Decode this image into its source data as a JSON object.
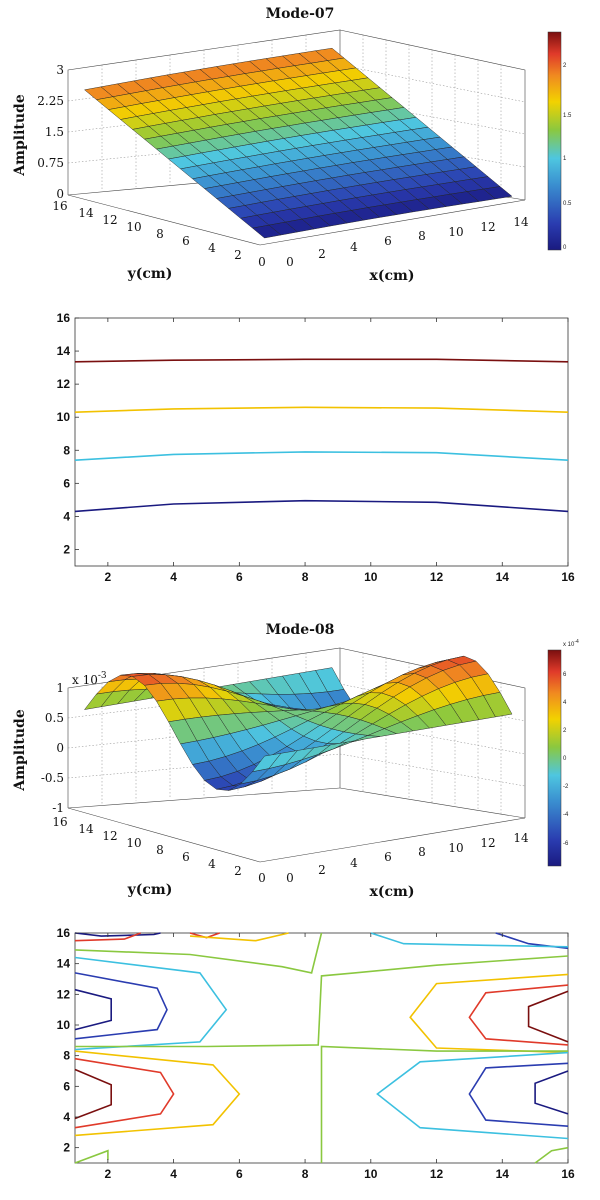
{
  "chart_data": [
    {
      "type": "surface3d",
      "title": "Mode-07",
      "xlabel": "x(cm)",
      "ylabel": "y(cm)",
      "zlabel": "Amplitude",
      "z_ticks": [
        "0",
        "0.75",
        "1.5",
        "2.25",
        "3"
      ],
      "zlim": [
        0,
        3
      ],
      "x_ticks": [
        "0",
        "2",
        "4",
        "6",
        "8",
        "10",
        "12",
        "14"
      ],
      "y_ticks": [
        "0",
        "2",
        "4",
        "6",
        "8",
        "10",
        "12",
        "14",
        "16"
      ],
      "xlim": [
        0,
        16
      ],
      "ylim": [
        0,
        16
      ],
      "colorbar_ticks": [
        "2",
        "1.5",
        "1",
        "0.5",
        "0"
      ],
      "colorbar_range": [
        0,
        2.5
      ],
      "surface_summary": "planar slope rising from ~0 at y=1 to ~2.5 at y=16, nearly constant along x"
    },
    {
      "type": "contour",
      "x_ticks": [
        "2",
        "4",
        "6",
        "8",
        "10",
        "12",
        "14",
        "16"
      ],
      "y_ticks": [
        "2",
        "4",
        "6",
        "8",
        "10",
        "12",
        "14",
        "16"
      ],
      "xlim": [
        1,
        16
      ],
      "ylim": [
        1,
        16
      ],
      "levels": [
        {
          "color": "#1a1a80",
          "points": [
            [
              1,
              4.3
            ],
            [
              4,
              4.75
            ],
            [
              8,
              4.95
            ],
            [
              12,
              4.85
            ],
            [
              16,
              4.3
            ]
          ]
        },
        {
          "color": "#3cc0e0",
          "points": [
            [
              1,
              7.4
            ],
            [
              4,
              7.75
            ],
            [
              8,
              7.9
            ],
            [
              12,
              7.85
            ],
            [
              16,
              7.4
            ]
          ]
        },
        {
          "color": "#f2c200",
          "points": [
            [
              1,
              10.3
            ],
            [
              4,
              10.5
            ],
            [
              8,
              10.6
            ],
            [
              12,
              10.55
            ],
            [
              16,
              10.3
            ]
          ]
        },
        {
          "color": "#7a0f0f",
          "points": [
            [
              1,
              13.35
            ],
            [
              4,
              13.45
            ],
            [
              8,
              13.5
            ],
            [
              12,
              13.5
            ],
            [
              16,
              13.35
            ]
          ]
        }
      ]
    },
    {
      "type": "surface3d",
      "title": "Mode-08",
      "xlabel": "x(cm)",
      "ylabel": "y(cm)",
      "zlabel": "Amplitude",
      "z_multiplier": "x 10",
      "z_exponent": "-3",
      "z_ticks": [
        "-1",
        "-0.5",
        "0",
        "0.5",
        "1"
      ],
      "zlim": [
        -1,
        1
      ],
      "x_ticks": [
        "0",
        "2",
        "4",
        "6",
        "8",
        "10",
        "12",
        "14"
      ],
      "y_ticks": [
        "0",
        "2",
        "4",
        "6",
        "8",
        "10",
        "12",
        "14",
        "16"
      ],
      "xlim": [
        0,
        16
      ],
      "ylim": [
        0,
        16
      ],
      "colorbar_multiplier": "x 10",
      "colorbar_exponent": "-4",
      "colorbar_ticks": [
        "6",
        "4",
        "2",
        "0",
        "-2",
        "-4",
        "-6"
      ],
      "colorbar_range": [
        -8,
        8
      ],
      "surface_summary": "saddle-like mode with peaks near (2,6),(16,11) and troughs near (2,11),(16,6)"
    },
    {
      "type": "contour",
      "x_ticks": [
        "2",
        "4",
        "6",
        "8",
        "10",
        "12",
        "14",
        "16"
      ],
      "y_ticks": [
        "2",
        "4",
        "6",
        "8",
        "10",
        "12",
        "14",
        "16"
      ],
      "xlim": [
        1,
        16
      ],
      "ylim": [
        1,
        16
      ],
      "levels": [
        {
          "color": "#7a0f0f",
          "points": [
            [
              1,
              7.1
            ],
            [
              2.1,
              6.1
            ],
            [
              2.1,
              4.8
            ],
            [
              1,
              3.9
            ]
          ]
        },
        {
          "color": "#e03a2a",
          "points": [
            [
              1,
              7.8
            ],
            [
              3.6,
              6.9
            ],
            [
              4.0,
              5.5
            ],
            [
              3.6,
              4.2
            ],
            [
              1,
              3.3
            ]
          ]
        },
        {
          "color": "#f2c200",
          "points": [
            [
              1,
              8.3
            ],
            [
              5.2,
              7.4
            ],
            [
              6.0,
              5.5
            ],
            [
              5.2,
              3.5
            ],
            [
              1,
              2.8
            ]
          ]
        },
        {
          "color": "#7a0f0f",
          "points": [
            [
              16,
              12.2
            ],
            [
              14.8,
              11.2
            ],
            [
              14.8,
              9.9
            ],
            [
              16,
              8.9
            ]
          ]
        },
        {
          "color": "#e03a2a",
          "points": [
            [
              16,
              12.6
            ],
            [
              13.5,
              12.1
            ],
            [
              13.0,
              10.5
            ],
            [
              13.5,
              9.1
            ],
            [
              16,
              8.7
            ]
          ]
        },
        {
          "color": "#f2c200",
          "points": [
            [
              16,
              13.3
            ],
            [
              12.0,
              12.7
            ],
            [
              11.2,
              10.5
            ],
            [
              12.0,
              8.5
            ],
            [
              16,
              8.2
            ]
          ]
        },
        {
          "color": "#1a1a80",
          "points": [
            [
              1,
              12.3
            ],
            [
              2.1,
              11.7
            ],
            [
              2.1,
              10.3
            ],
            [
              1,
              9.7
            ]
          ]
        },
        {
          "color": "#2a3cb0",
          "points": [
            [
              1,
              13.4
            ],
            [
              3.5,
              12.4
            ],
            [
              3.8,
              11.0
            ],
            [
              3.5,
              9.7
            ],
            [
              1,
              9.1
            ]
          ]
        },
        {
          "color": "#3cc0e0",
          "points": [
            [
              1,
              14.4
            ],
            [
              4.8,
              13.4
            ],
            [
              5.6,
              11.0
            ],
            [
              4.8,
              8.9
            ],
            [
              1,
              8.4
            ]
          ]
        },
        {
          "color": "#1a1a80",
          "points": [
            [
              16,
              7.0
            ],
            [
              15.0,
              6.2
            ],
            [
              15.0,
              4.9
            ],
            [
              16,
              4.2
            ]
          ]
        },
        {
          "color": "#2a3cb0",
          "points": [
            [
              16,
              7.5
            ],
            [
              13.5,
              7.2
            ],
            [
              13.0,
              5.5
            ],
            [
              13.5,
              3.8
            ],
            [
              16,
              3.4
            ]
          ]
        },
        {
          "color": "#3cc0e0",
          "points": [
            [
              16,
              8.2
            ],
            [
              11.5,
              7.6
            ],
            [
              10.2,
              5.5
            ],
            [
              11.5,
              3.3
            ],
            [
              16,
              2.6
            ]
          ]
        },
        {
          "color": "#8ac840",
          "points": [
            [
              1,
              14.9
            ],
            [
              4.5,
              14.6
            ],
            [
              7.3,
              13.8
            ],
            [
              8.2,
              13.4
            ],
            [
              8.5,
              16
            ]
          ]
        },
        {
          "color": "#8ac840",
          "points": [
            [
              1,
              8.6
            ],
            [
              5,
              8.6
            ],
            [
              8.4,
              8.7
            ],
            [
              8.5,
              13.2
            ],
            [
              9.5,
              13.4
            ],
            [
              12,
              13.9
            ],
            [
              16,
              14.5
            ]
          ]
        },
        {
          "color": "#8ac840",
          "points": [
            [
              8.5,
              1
            ],
            [
              8.5,
              8.6
            ],
            [
              12,
              8.3
            ],
            [
              16,
              8.3
            ]
          ]
        },
        {
          "color": "#8ac840",
          "points": [
            [
              1,
              1.0
            ],
            [
              2.0,
              1.8
            ],
            [
              2.0,
              1.2
            ]
          ]
        },
        {
          "color": "#8ac840",
          "points": [
            [
              15,
              1
            ],
            [
              15.5,
              1.8
            ],
            [
              16,
              2.0
            ]
          ]
        },
        {
          "color": "#1a1a80",
          "points": [
            [
              1,
              16
            ],
            [
              1.8,
              15.8
            ],
            [
              3.4,
              15.9
            ],
            [
              3.6,
              16
            ]
          ]
        },
        {
          "color": "#2a3cb0",
          "points": [
            [
              13.8,
              16
            ],
            [
              14.8,
              15.3
            ],
            [
              16,
              15.0
            ]
          ]
        },
        {
          "color": "#e03a2a",
          "points": [
            [
              4.5,
              16
            ],
            [
              5.0,
              15.7
            ],
            [
              5.4,
              16
            ]
          ]
        },
        {
          "color": "#e03a2a",
          "points": [
            [
              1,
              15.5
            ],
            [
              2.5,
              15.6
            ],
            [
              3.0,
              16
            ]
          ]
        },
        {
          "color": "#f2c200",
          "points": [
            [
              4.5,
              15.8
            ],
            [
              6.5,
              15.5
            ],
            [
              7.5,
              16
            ]
          ]
        },
        {
          "color": "#3cc0e0",
          "points": [
            [
              10,
              16
            ],
            [
              11,
              15.3
            ],
            [
              13.5,
              15.2
            ],
            [
              16,
              15.1
            ]
          ]
        }
      ]
    }
  ]
}
